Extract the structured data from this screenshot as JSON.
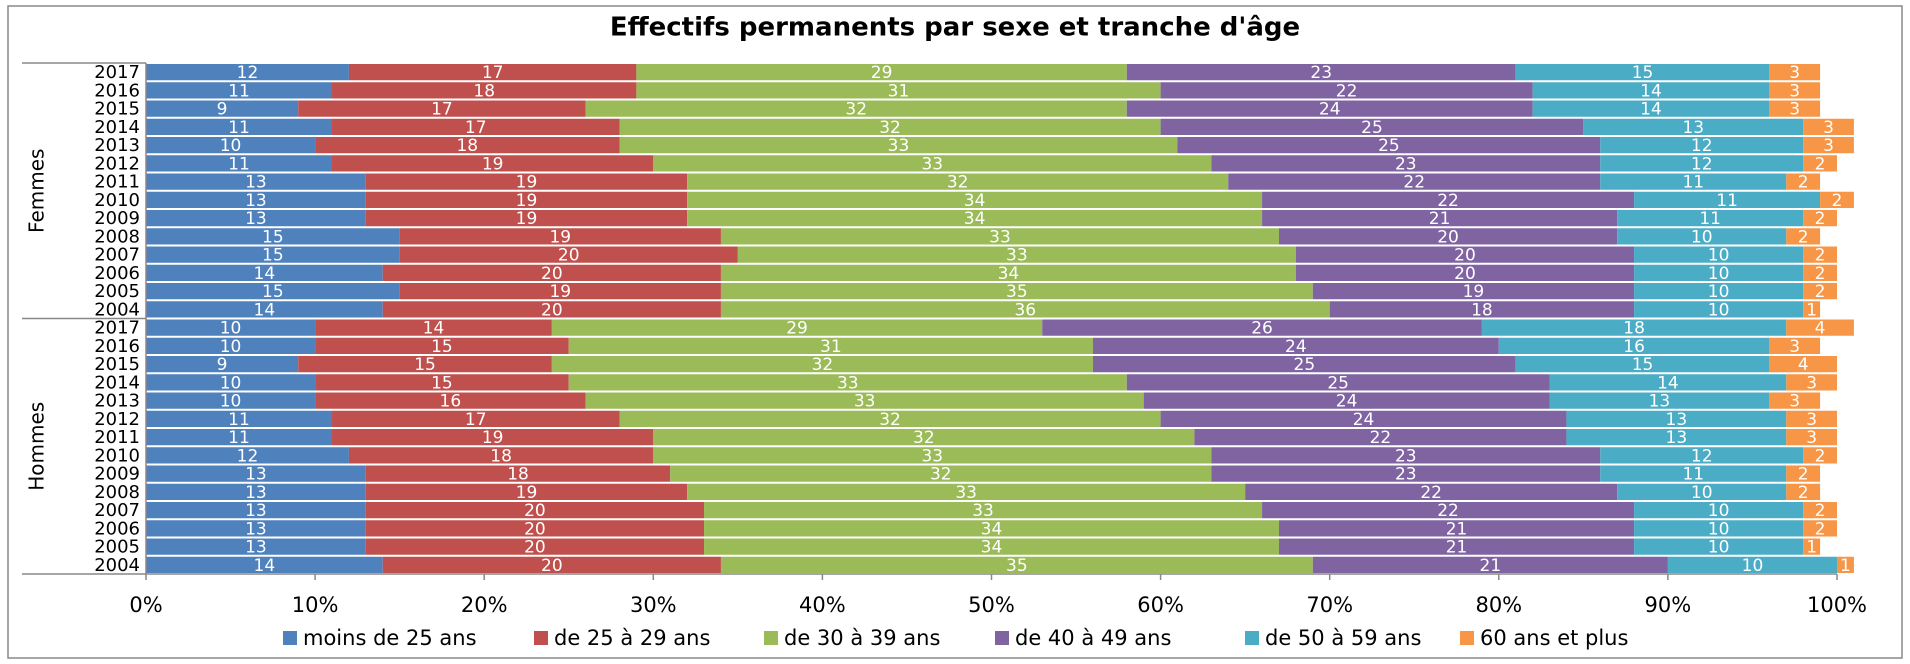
{
  "chart_data": {
    "type": "stacked-barh",
    "title": "Effectifs permanents par sexe et tranche d'âge",
    "groups": [
      "Femmes",
      "Hommes"
    ],
    "categories": [
      "2017",
      "2016",
      "2015",
      "2014",
      "2013",
      "2012",
      "2011",
      "2010",
      "2009",
      "2008",
      "2007",
      "2006",
      "2005",
      "2004",
      "2017",
      "2016",
      "2015",
      "2014",
      "2013",
      "2012",
      "2011",
      "2010",
      "2009",
      "2008",
      "2007",
      "2006",
      "2005",
      "2004"
    ],
    "series": [
      {
        "name": "moins de 25 ans",
        "color": "#4f81bd",
        "values": [
          12,
          11,
          9,
          11,
          10,
          11,
          13,
          13,
          13,
          15,
          15,
          14,
          15,
          14,
          10,
          10,
          9,
          10,
          10,
          11,
          11,
          12,
          13,
          13,
          13,
          13,
          13,
          14
        ]
      },
      {
        "name": "de 25 à 29 ans",
        "color": "#c0504d",
        "values": [
          17,
          18,
          17,
          17,
          18,
          19,
          19,
          19,
          19,
          19,
          20,
          20,
          19,
          20,
          14,
          15,
          15,
          15,
          16,
          17,
          19,
          18,
          18,
          19,
          20,
          20,
          20,
          20
        ]
      },
      {
        "name": "de 30 à 39 ans",
        "color": "#9bbb59",
        "values": [
          29,
          31,
          32,
          32,
          33,
          33,
          32,
          34,
          34,
          33,
          33,
          34,
          35,
          36,
          29,
          31,
          32,
          33,
          33,
          32,
          32,
          33,
          32,
          33,
          33,
          34,
          34,
          35
        ]
      },
      {
        "name": "de 40 à 49 ans",
        "color": "#8064a2",
        "values": [
          23,
          22,
          24,
          25,
          25,
          23,
          22,
          22,
          21,
          20,
          20,
          20,
          19,
          18,
          26,
          24,
          25,
          25,
          24,
          24,
          22,
          23,
          23,
          22,
          22,
          21,
          21,
          21
        ]
      },
      {
        "name": "de 50 à 59 ans",
        "color": "#4bacc6",
        "values": [
          15,
          14,
          14,
          13,
          12,
          12,
          11,
          11,
          11,
          10,
          10,
          10,
          10,
          10,
          18,
          16,
          15,
          14,
          13,
          13,
          13,
          12,
          11,
          10,
          10,
          10,
          10,
          10
        ]
      },
      {
        "name": "60 ans et plus",
        "color": "#f79646",
        "values": [
          3,
          3,
          3,
          3,
          3,
          2,
          2,
          2,
          2,
          2,
          2,
          2,
          2,
          1,
          4,
          3,
          4,
          3,
          3,
          3,
          3,
          2,
          2,
          2,
          2,
          2,
          1,
          1
        ]
      }
    ],
    "xlim": [
      0,
      100
    ],
    "xticks": [
      {
        "value": 0,
        "label": "0%"
      },
      {
        "value": 10,
        "label": "10%"
      },
      {
        "value": 20,
        "label": "20%"
      },
      {
        "value": 30,
        "label": "30%"
      },
      {
        "value": 40,
        "label": "40%"
      },
      {
        "value": 50,
        "label": "50%"
      },
      {
        "value": 60,
        "label": "60%"
      },
      {
        "value": 70,
        "label": "70%"
      },
      {
        "value": 80,
        "label": "80%"
      },
      {
        "value": 90,
        "label": "90%"
      },
      {
        "value": 100,
        "label": "100%"
      }
    ],
    "legend": "bottom"
  }
}
